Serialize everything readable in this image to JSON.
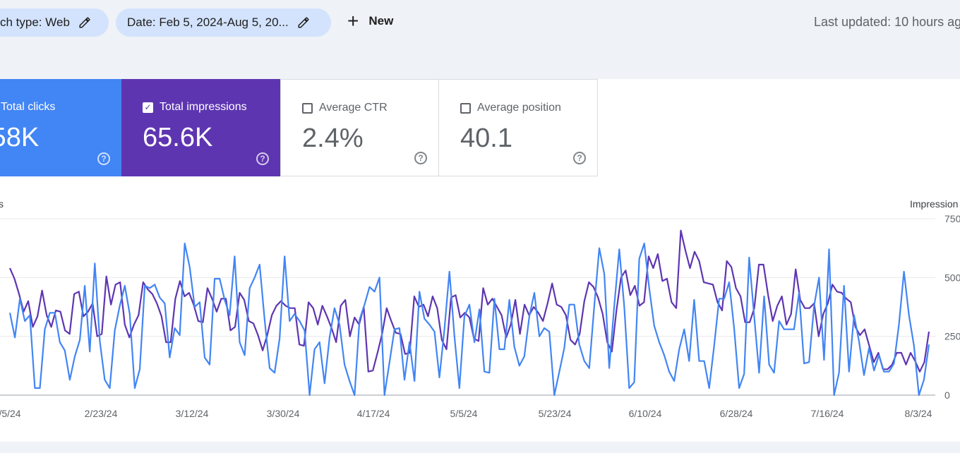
{
  "filters": {
    "search_type": "ch type: Web",
    "date": "Date: Feb 5, 2024-Aug 5, 20...",
    "new_label": "New",
    "last_updated": "Last updated: 10 hours ag"
  },
  "metrics": [
    {
      "label": "Total clicks",
      "value": ".58K",
      "checked": true,
      "help": "?"
    },
    {
      "label": "Total impressions",
      "value": "65.6K",
      "checked": true,
      "help": "?"
    },
    {
      "label": "Average CTR",
      "value": "2.4%",
      "checked": false,
      "help": "?"
    },
    {
      "label": "Average position",
      "value": "40.1",
      "checked": false,
      "help": "?"
    }
  ],
  "colors": {
    "clicks": "#4285f4",
    "impressions": "#5e35b1",
    "chip": "#d3e3fd"
  },
  "chart_data": {
    "type": "line",
    "left_axis_label": "s",
    "right_axis_label": "Impression",
    "right_ticks": [
      "750",
      "500",
      "250",
      "0"
    ],
    "ylim_right": [
      0,
      750
    ],
    "x_tick_labels": [
      "/5/24",
      "2/23/24",
      "3/12/24",
      "3/30/24",
      "4/17/24",
      "5/5/24",
      "5/23/24",
      "6/10/24",
      "6/28/24",
      "7/16/24",
      "8/3/24"
    ],
    "grid": true,
    "series": [
      {
        "name": "Total impressions",
        "color": "#5e35b1",
        "values": [
          540,
          495,
          430,
          355,
          400,
          290,
          335,
          445,
          340,
          290,
          360,
          355,
          275,
          260,
          430,
          440,
          335,
          355,
          390,
          250,
          260,
          505,
          385,
          470,
          480,
          300,
          245,
          300,
          340,
          480,
          450,
          430,
          390,
          335,
          225,
          225,
          410,
          485,
          420,
          435,
          385,
          315,
          310,
          455,
          410,
          355,
          410,
          410,
          275,
          290,
          435,
          405,
          315,
          305,
          255,
          190,
          255,
          340,
          380,
          400,
          380,
          370,
          370,
          215,
          210,
          395,
          370,
          300,
          380,
          335,
          285,
          225,
          380,
          405,
          250,
          330,
          300,
          375,
          100,
          105,
          180,
          260,
          370,
          315,
          265,
          260,
          175,
          180,
          420,
          375,
          385,
          335,
          420,
          370,
          235,
          195,
          415,
          425,
          330,
          350,
          330,
          240,
          230,
          455,
          385,
          410,
          375,
          340,
          245,
          300,
          405,
          260,
          385,
          340,
          375,
          350,
          315,
          390,
          475,
          385,
          375,
          340,
          235,
          215,
          260,
          400,
          480,
          460,
          415,
          345,
          225,
          185,
          360,
          500,
          530,
          425,
          465,
          380,
          395,
          590,
          540,
          600,
          485,
          495,
          395,
          370,
          700,
          615,
          540,
          610,
          570,
          480,
          475,
          470,
          395,
          360,
          570,
          545,
          455,
          420,
          310,
          310,
          370,
          555,
          555,
          425,
          315,
          380,
          420,
          300,
          345,
          535,
          405,
          370,
          370,
          390,
          250,
          345,
          390,
          470,
          440,
          435,
          410,
          395,
          290,
          255,
          280,
          210,
          140,
          180,
          110,
          110,
          130,
          180,
          180,
          130,
          180,
          145,
          100,
          140,
          270
        ]
      },
      {
        "name": "Total clicks",
        "color": "#4285f4",
        "values": [
          350,
          245,
          410,
          315,
          340,
          30,
          30,
          280,
          350,
          350,
          225,
          190,
          65,
          165,
          235,
          465,
          185,
          560,
          230,
          65,
          30,
          275,
          380,
          465,
          345,
          30,
          110,
          465,
          455,
          470,
          415,
          390,
          160,
          285,
          255,
          645,
          545,
          375,
          395,
          160,
          130,
          495,
          495,
          405,
          340,
          590,
          225,
          170,
          455,
          500,
          555,
          320,
          115,
          95,
          240,
          590,
          315,
          345,
          315,
          275,
          0,
          195,
          225,
          50,
          245,
          370,
          300,
          130,
          60,
          0,
          320,
          385,
          460,
          440,
          500,
          0,
          140,
          280,
          285,
          65,
          225,
          60,
          440,
          325,
          300,
          270,
          75,
          280,
          525,
          250,
          30,
          335,
          385,
          225,
          365,
          100,
          95,
          410,
          195,
          195,
          405,
          205,
          125,
          165,
          335,
          435,
          250,
          285,
          270,
          0,
          100,
          200,
          385,
          385,
          215,
          145,
          115,
          380,
          625,
          515,
          115,
          380,
          620,
          375,
          30,
          55,
          580,
          645,
          455,
          295,
          225,
          170,
          100,
          60,
          195,
          280,
          145,
          405,
          145,
          145,
          30,
          210,
          410,
          410,
          480,
          285,
          30,
          90,
          585,
          340,
          95,
          420,
          130,
          95,
          315,
          280,
          280,
          280,
          435,
          135,
          140,
          380,
          500,
          150,
          620,
          0,
          95,
          465,
          100,
          340,
          230,
          85,
          200,
          105,
          170,
          100,
          100,
          135,
          300,
          525,
          340,
          210,
          0,
          65,
          215
        ]
      }
    ]
  }
}
